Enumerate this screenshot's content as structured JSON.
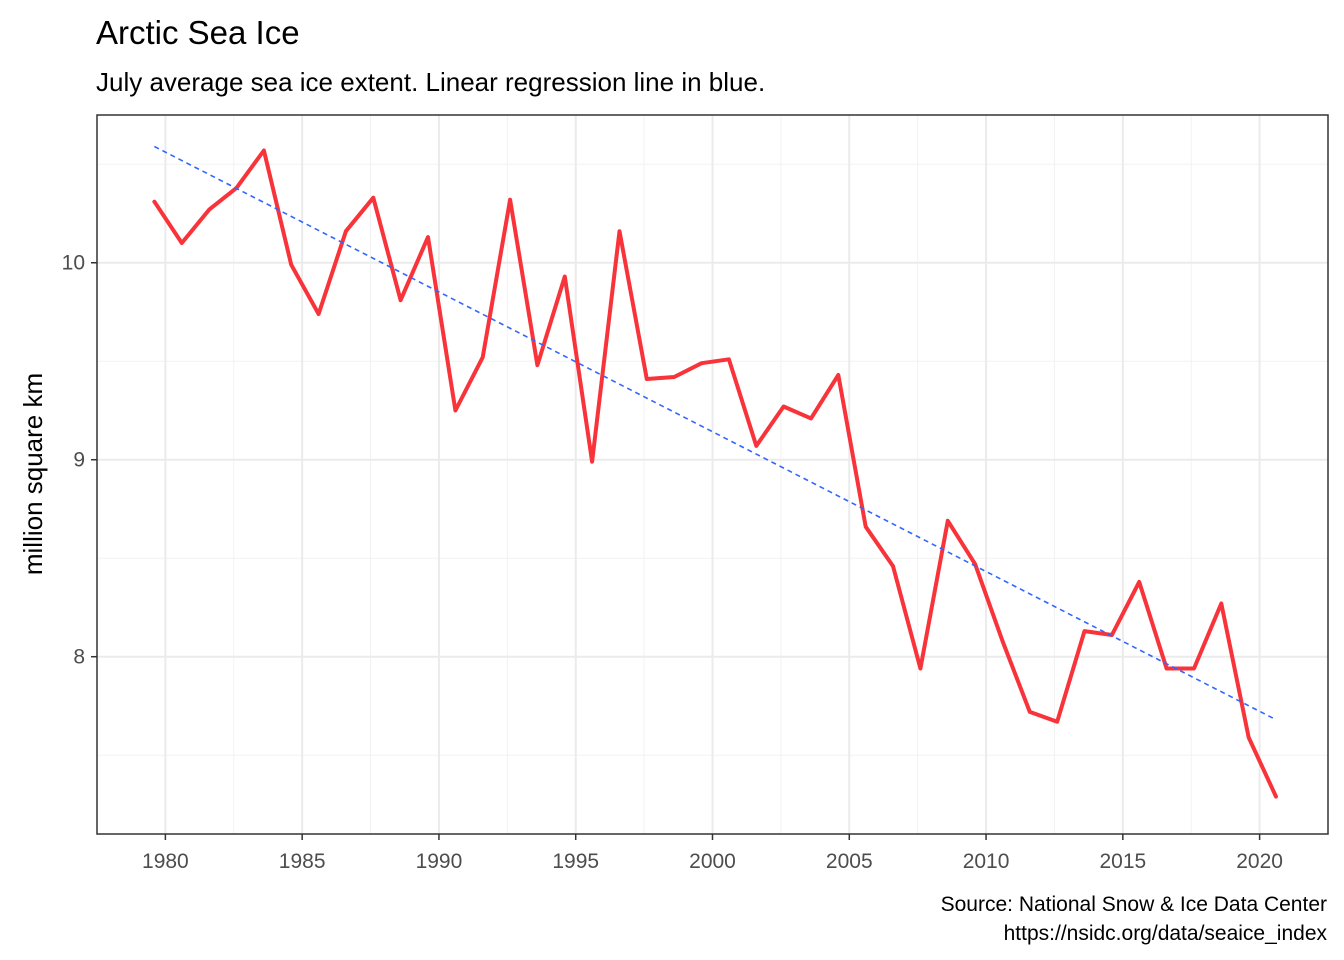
{
  "title": "Arctic Sea Ice",
  "subtitle": "July average sea ice extent. Linear regression line in blue.",
  "caption": {
    "line1": "Source: National Snow & Ice Data Center",
    "line2": "https://nsidc.org/data/seaice_index"
  },
  "colors": {
    "series": "#f8333a",
    "regression": "#3366ff",
    "major_grid": "#ebebeb",
    "minor_grid": "#f2f2f2",
    "panel_border": "#333333",
    "tick_text": "#4d4d4d"
  },
  "chart_data": {
    "type": "line",
    "title": "Arctic Sea Ice",
    "subtitle": "July average sea ice extent. Linear regression line in blue.",
    "xlabel": "",
    "ylabel": "million square km",
    "xlim": [
      1977.5,
      2022.5
    ],
    "ylim": [
      7.1,
      10.75
    ],
    "x_ticks": [
      1980,
      1985,
      1990,
      1995,
      2000,
      2005,
      2010,
      2015,
      2020
    ],
    "y_ticks": [
      8,
      9,
      10
    ],
    "grid": true,
    "legend": "none",
    "series": [
      {
        "type": "line",
        "color": "#f8333a",
        "x": [
          1979.6,
          1980.6,
          1981.6,
          1982.6,
          1983.6,
          1984.6,
          1985.6,
          1986.6,
          1987.6,
          1988.6,
          1989.6,
          1990.6,
          1991.6,
          1992.6,
          1993.6,
          1994.6,
          1995.6,
          1996.6,
          1997.6,
          1998.6,
          1999.6,
          2000.6,
          2001.6,
          2002.6,
          2003.6,
          2004.6,
          2005.6,
          2006.6,
          2007.6,
          2008.6,
          2009.6,
          2010.6,
          2011.6,
          2012.6,
          2013.6,
          2014.6,
          2015.6,
          2016.6,
          2017.6,
          2018.6,
          2019.6,
          2020.6
        ],
        "values": [
          10.31,
          10.1,
          10.27,
          10.38,
          10.57,
          9.99,
          9.74,
          10.16,
          10.33,
          9.81,
          10.13,
          9.25,
          9.52,
          10.32,
          9.48,
          9.93,
          8.99,
          10.16,
          9.41,
          9.42,
          9.49,
          9.51,
          9.07,
          9.27,
          9.21,
          9.43,
          8.66,
          8.46,
          7.94,
          8.69,
          8.47,
          8.08,
          7.72,
          7.67,
          8.13,
          8.11,
          8.38,
          7.94,
          7.94,
          8.27,
          7.59,
          7.29
        ]
      },
      {
        "type": "regression",
        "style": "dashed",
        "color": "#3366ff",
        "x": [
          1979.6,
          2020.6
        ],
        "values": [
          10.59,
          7.68
        ]
      }
    ]
  }
}
